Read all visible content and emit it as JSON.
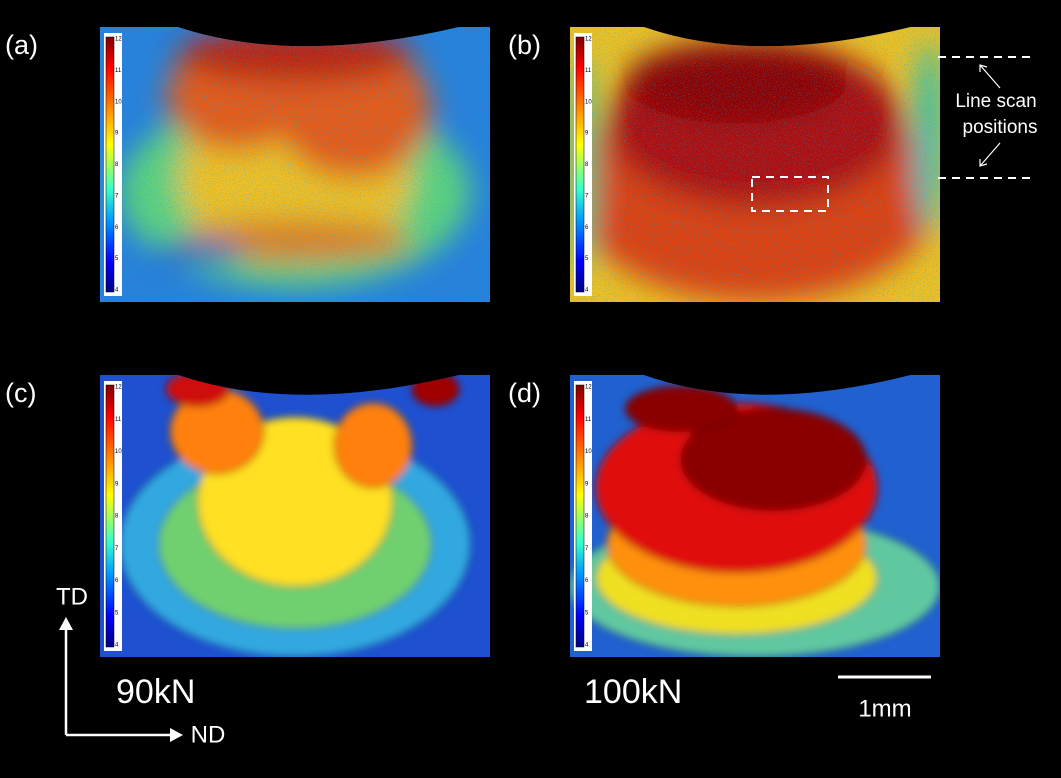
{
  "panels": [
    {
      "label": "(a)"
    },
    {
      "label": "(b)"
    },
    {
      "label": "(c)"
    },
    {
      "label": "(d)"
    }
  ],
  "colorbar_ticks": [
    "12",
    "11",
    "10",
    "9",
    "8",
    "7",
    "6",
    "5",
    "4"
  ],
  "line_scan_label": [
    "Line scan",
    "positions"
  ],
  "loads": [
    "90kN",
    "100kN"
  ],
  "scale_bar": "1mm",
  "axes": {
    "td": "TD",
    "nd": "ND"
  }
}
